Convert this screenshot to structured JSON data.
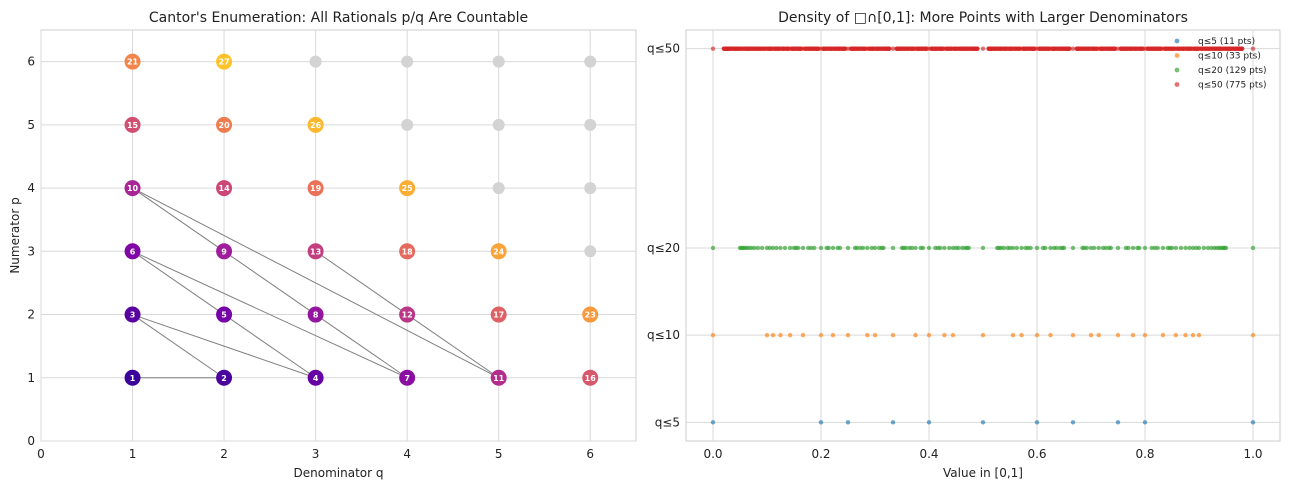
{
  "chart_data": [
    {
      "type": "scatter",
      "title": "Cantor's Enumeration: All Rationals p/q Are Countable",
      "xlabel": "Denominator q",
      "ylabel": "Numerator p",
      "xlim": [
        0,
        6.5
      ],
      "ylim": [
        0,
        6.5
      ],
      "xticks": [
        "0",
        "1",
        "2",
        "3",
        "4",
        "5",
        "6"
      ],
      "yticks": [
        "0",
        "1",
        "2",
        "3",
        "4",
        "5",
        "6"
      ],
      "grid": true,
      "colors": {
        "unenumerated": "#d3d3d3",
        "path_line": "#7f7f7f",
        "ramp": [
          "#3b049a",
          "#7a02a8",
          "#a62298",
          "#cb4778",
          "#e66c5c",
          "#f89540",
          "#fec328"
        ]
      },
      "enumerated": [
        {
          "q": 1,
          "p": 1,
          "order": "1"
        },
        {
          "q": 2,
          "p": 1,
          "order": "2"
        },
        {
          "q": 1,
          "p": 2,
          "order": "3"
        },
        {
          "q": 3,
          "p": 1,
          "order": "4"
        },
        {
          "q": 2,
          "p": 2,
          "order": "5"
        },
        {
          "q": 1,
          "p": 3,
          "order": "6"
        },
        {
          "q": 4,
          "p": 1,
          "order": "7"
        },
        {
          "q": 3,
          "p": 2,
          "order": "8"
        },
        {
          "q": 2,
          "p": 3,
          "order": "9"
        },
        {
          "q": 1,
          "p": 4,
          "order": "10"
        },
        {
          "q": 5,
          "p": 1,
          "order": "11"
        },
        {
          "q": 4,
          "p": 2,
          "order": "12"
        },
        {
          "q": 3,
          "p": 3,
          "order": "13"
        },
        {
          "q": 2,
          "p": 4,
          "order": "14"
        },
        {
          "q": 1,
          "p": 5,
          "order": "15"
        },
        {
          "q": 6,
          "p": 1,
          "order": "16"
        },
        {
          "q": 5,
          "p": 2,
          "order": "17"
        },
        {
          "q": 4,
          "p": 3,
          "order": "18"
        },
        {
          "q": 3,
          "p": 4,
          "order": "19"
        },
        {
          "q": 2,
          "p": 5,
          "order": "20"
        },
        {
          "q": 1,
          "p": 6,
          "order": "21"
        },
        {
          "q": 6,
          "p": 2,
          "order": "23"
        },
        {
          "q": 5,
          "p": 3,
          "order": "24"
        },
        {
          "q": 4,
          "p": 4,
          "order": "25"
        },
        {
          "q": 3,
          "p": 5,
          "order": "26"
        },
        {
          "q": 2,
          "p": 6,
          "order": "27"
        }
      ],
      "unenumerated": [
        {
          "q": 6,
          "p": 3
        },
        {
          "q": 5,
          "p": 4
        },
        {
          "q": 6,
          "p": 4
        },
        {
          "q": 4,
          "p": 5
        },
        {
          "q": 5,
          "p": 5
        },
        {
          "q": 6,
          "p": 5
        },
        {
          "q": 3,
          "p": 6
        },
        {
          "q": 4,
          "p": 6
        },
        {
          "q": 5,
          "p": 6
        },
        {
          "q": 6,
          "p": 6
        }
      ],
      "path": [
        {
          "q": 1,
          "p": 1
        },
        {
          "q": 2,
          "p": 1
        },
        {
          "q": 1,
          "p": 2
        },
        {
          "q": 3,
          "p": 1
        },
        {
          "q": 2,
          "p": 2
        },
        {
          "q": 1,
          "p": 3
        },
        {
          "q": 4,
          "p": 1
        },
        {
          "q": 3,
          "p": 2
        },
        {
          "q": 2,
          "p": 3
        },
        {
          "q": 1,
          "p": 4
        },
        {
          "q": 5,
          "p": 1
        },
        {
          "q": 4,
          "p": 2
        },
        {
          "q": 3,
          "p": 3
        }
      ]
    },
    {
      "type": "scatter",
      "title": "Density of □∩[0,1]: More Points with Larger Denominators",
      "xlabel": "Value in [0,1]",
      "ylabel": "",
      "xlim": [
        -0.05,
        1.05
      ],
      "ylim": [
        -0.15,
        3.15
      ],
      "xticks": [
        "0.0",
        "0.2",
        "0.4",
        "0.6",
        "0.8",
        "1.0"
      ],
      "legend_position": "top-right",
      "grid": true,
      "series": [
        {
          "name": "q≤5",
          "legend": "q≤5 (11 pts)",
          "color": "#1f77b4",
          "level": 0,
          "max_q": 5
        },
        {
          "name": "q≤10",
          "legend": "q≤10 (33 pts)",
          "color": "#ff7f0e",
          "level": 0.7,
          "max_q": 10
        },
        {
          "name": "q≤20",
          "legend": "q≤20 (129 pts)",
          "color": "#2ca02c",
          "level": 1.4,
          "max_q": 20
        },
        {
          "name": "q≤50",
          "legend": "q≤50 (775 pts)",
          "color": "#d62728",
          "level": 3,
          "max_q": 50
        }
      ]
    }
  ]
}
